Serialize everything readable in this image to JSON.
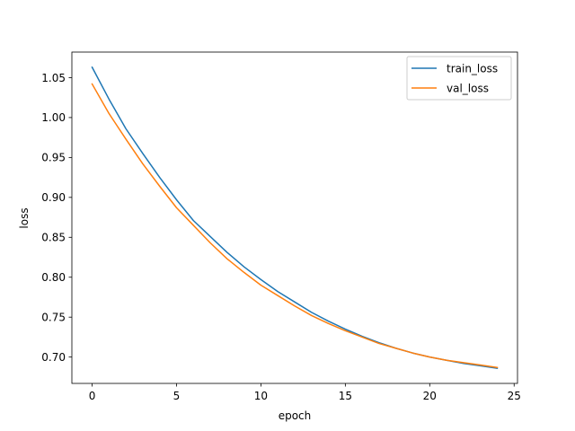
{
  "chart_data": {
    "type": "line",
    "title": "",
    "xlabel": "epoch",
    "ylabel": "loss",
    "xlim": [
      -1.2,
      25.2
    ],
    "ylim": [
      0.667,
      1.082
    ],
    "xticks": [
      0,
      5,
      10,
      15,
      20,
      25
    ],
    "yticks": [
      0.7,
      0.75,
      0.8,
      0.85,
      0.9,
      0.95,
      1.0,
      1.05
    ],
    "xtick_labels": [
      "0",
      "5",
      "10",
      "15",
      "20",
      "25"
    ],
    "ytick_labels": [
      "0.70",
      "0.75",
      "0.80",
      "0.85",
      "0.90",
      "0.95",
      "1.00",
      "1.05"
    ],
    "grid": false,
    "legend": "top-right",
    "x": [
      0,
      1,
      2,
      3,
      4,
      5,
      6,
      7,
      8,
      9,
      10,
      11,
      12,
      13,
      14,
      15,
      16,
      17,
      18,
      19,
      20,
      21,
      22,
      23,
      24
    ],
    "series": [
      {
        "name": "train_loss",
        "color": "#1f77b4",
        "values": [
          1.063,
          1.023,
          0.986,
          0.955,
          0.925,
          0.897,
          0.871,
          0.851,
          0.831,
          0.813,
          0.797,
          0.782,
          0.769,
          0.756,
          0.745,
          0.735,
          0.726,
          0.718,
          0.711,
          0.705,
          0.7,
          0.696,
          0.692,
          0.689,
          0.686
        ]
      },
      {
        "name": "val_loss",
        "color": "#ff7f0e",
        "values": [
          1.042,
          1.005,
          0.973,
          0.942,
          0.914,
          0.887,
          0.865,
          0.843,
          0.823,
          0.806,
          0.79,
          0.777,
          0.764,
          0.752,
          0.742,
          0.733,
          0.725,
          0.717,
          0.711,
          0.705,
          0.7,
          0.696,
          0.693,
          0.69,
          0.687
        ]
      }
    ]
  }
}
